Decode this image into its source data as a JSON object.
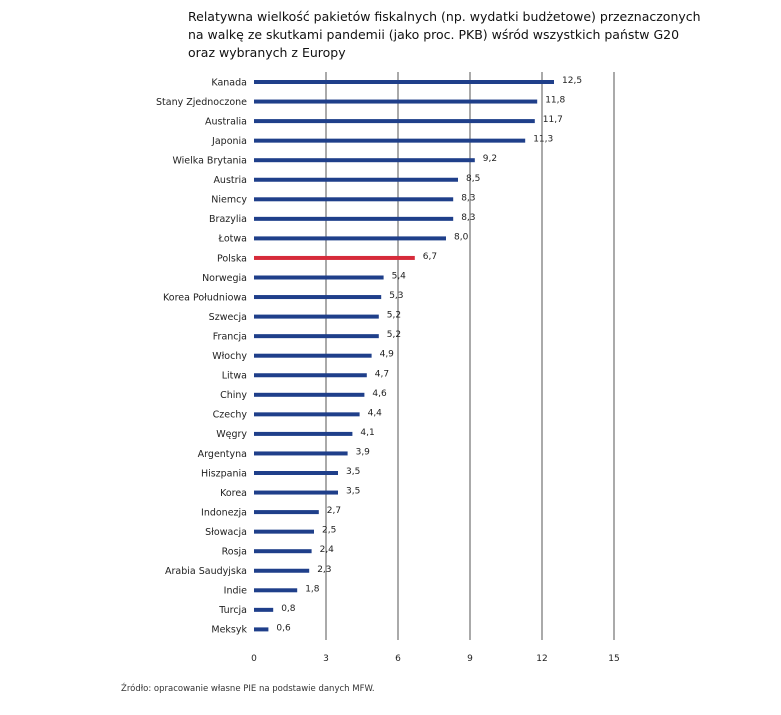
{
  "colors": {
    "default": "#1f3f8a",
    "highlight": "#d62b3a",
    "grid": "#555555"
  },
  "chart_data": {
    "type": "bar",
    "orientation": "horizontal",
    "title_lines": [
      "Relatywna wielkość pakietów fiskalnych (np. wydatki budżetowe) przeznaczonych",
      "na walkę ze skutkami pandemii (jako proc. PKB) wśród wszystkich państw G20",
      "oraz wybranych z Europy"
    ],
    "categories": [
      "Kanada",
      "Stany Zjednoczone",
      "Australia",
      "Japonia",
      "Wielka Brytania",
      "Austria",
      "Niemcy",
      "Brazylia",
      "Łotwa",
      "Polska",
      "Norwegia",
      "Korea Południowa",
      "Szwecja",
      "Francja",
      "Włochy",
      "Litwa",
      "Chiny",
      "Czechy",
      "Węgry",
      "Argentyna",
      "Hiszpania",
      "Korea",
      "Indonezja",
      "Słowacja",
      "Rosja",
      "Arabia Saudyjska",
      "Indie",
      "Turcja",
      "Meksyk"
    ],
    "values": [
      12.5,
      11.8,
      11.7,
      11.3,
      9.2,
      8.5,
      8.3,
      8.3,
      8.0,
      6.7,
      5.4,
      5.3,
      5.2,
      5.2,
      4.9,
      4.7,
      4.6,
      4.4,
      4.1,
      3.9,
      3.5,
      3.5,
      2.7,
      2.5,
      2.4,
      2.3,
      1.8,
      0.8,
      0.6
    ],
    "value_labels": [
      "12,5",
      "11,8",
      "11,7",
      "11,3",
      "9,2",
      "8,5",
      "8,3",
      "8,3",
      "8,0",
      "6,7",
      "5,4",
      "5,3",
      "5,2",
      "5,2",
      "4,9",
      "4,7",
      "4,6",
      "4,4",
      "4,1",
      "3,9",
      "3,5",
      "3,5",
      "2,7",
      "2,5",
      "2,4",
      "2,3",
      "1,8",
      "0,8",
      "0,6"
    ],
    "highlight": "Polska",
    "xlim": [
      0,
      15
    ],
    "xticks": [
      0,
      3,
      6,
      9,
      12,
      15
    ],
    "xlabel": "",
    "ylabel": "",
    "grid": true
  },
  "source": "Źródło: opracowanie własne PIE na podstawie danych MFW."
}
